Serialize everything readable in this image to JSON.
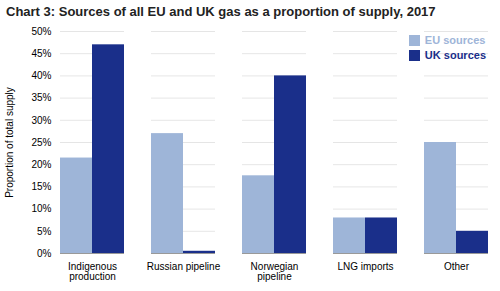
{
  "chart_data": {
    "type": "bar",
    "title": "Chart 3: Sources of all EU and UK gas as a proportion of supply, 2017",
    "categories": [
      "Indigenous\nproduction",
      "Russian pipeline",
      "Norwegian\npipeline",
      "LNG imports",
      "Other"
    ],
    "series": [
      {
        "name": "EU sources",
        "color": "#9eb5d8",
        "values": [
          21.5,
          27.0,
          17.5,
          8.0,
          25.0
        ]
      },
      {
        "name": "UK sources",
        "color": "#1a2f8a",
        "values": [
          47.0,
          0.5,
          40.0,
          8.0,
          5.0
        ]
      }
    ],
    "ylabel": "Proportion of total supply",
    "ylim": [
      0,
      50
    ],
    "yticks": [
      {
        "value": 0,
        "label": "0%"
      },
      {
        "value": 5,
        "label": "5%"
      },
      {
        "value": 10,
        "label": "10%"
      },
      {
        "value": 15,
        "label": "15%"
      },
      {
        "value": 20,
        "label": "20%"
      },
      {
        "value": 25,
        "label": "25%"
      },
      {
        "value": 30,
        "label": "30%"
      },
      {
        "value": 35,
        "label": "35%"
      },
      {
        "value": 40,
        "label": "40%"
      },
      {
        "value": 45,
        "label": "45%"
      },
      {
        "value": 50,
        "label": "50%"
      }
    ],
    "grid": true,
    "legend": "upper right"
  }
}
